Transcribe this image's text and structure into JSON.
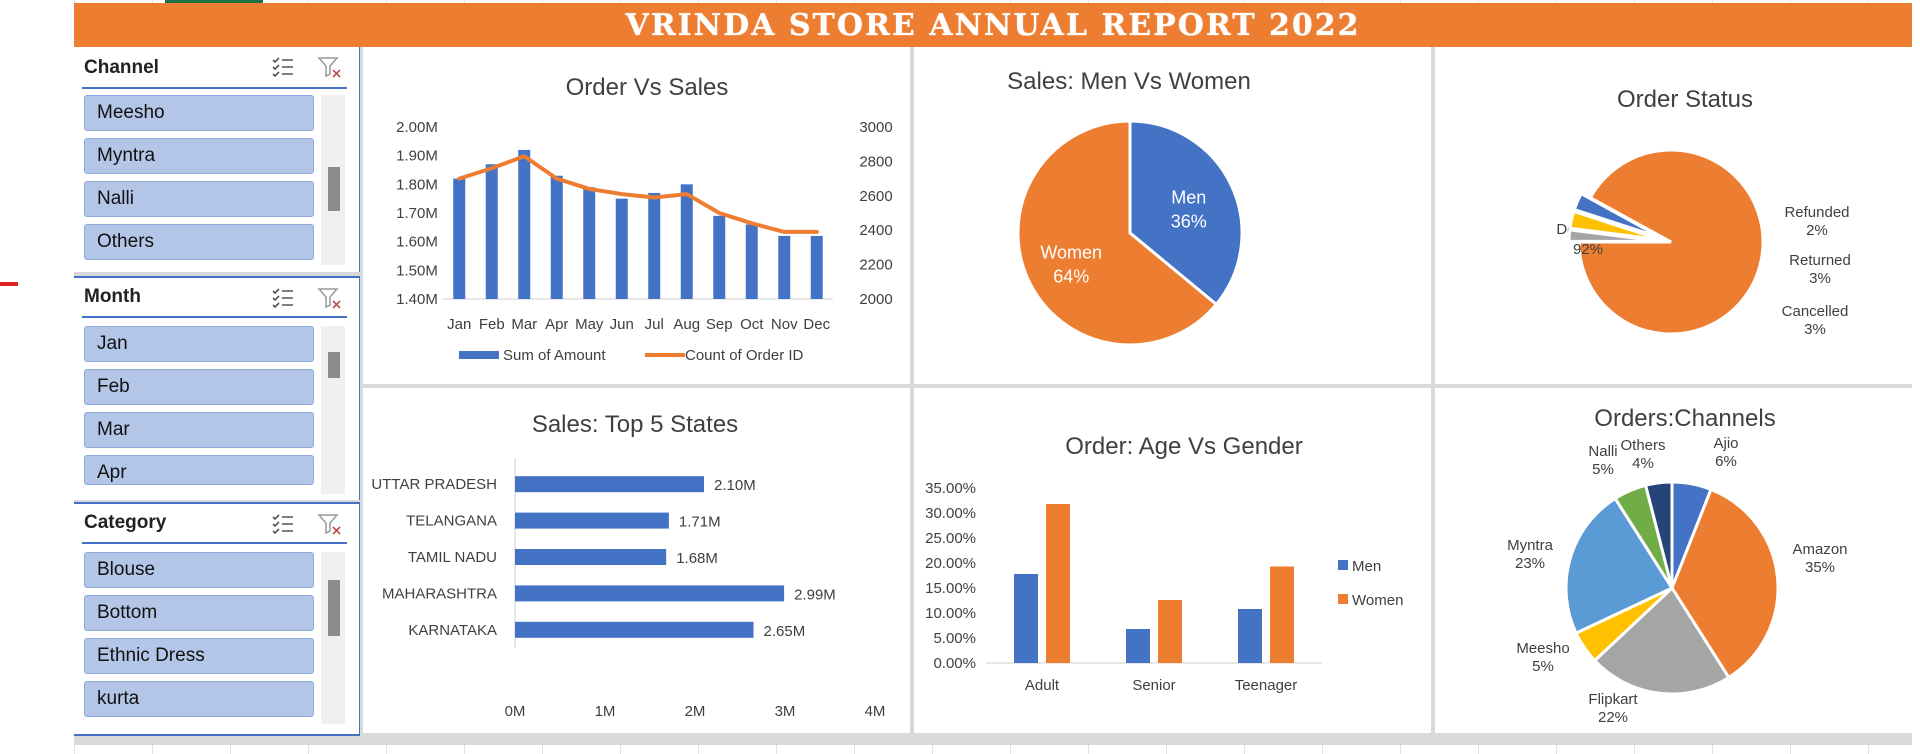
{
  "banner": {
    "title": "VRINDA STORE ANNUAL REPORT 2022"
  },
  "colors": {
    "orange": "#ed7d31",
    "blue": "#4472c4",
    "gray": "#a5a5a5",
    "yellow": "#ffc000",
    "lightblue": "#5b9bd5",
    "green": "#70ad47",
    "navy": "#264478"
  },
  "slicers": [
    {
      "title": "Channel",
      "items": [
        "Meesho",
        "Myntra",
        "Nalli",
        "Others"
      ]
    },
    {
      "title": "Month",
      "items": [
        "Jan",
        "Feb",
        "Mar",
        "Apr"
      ]
    },
    {
      "title": "Category",
      "items": [
        "Blouse",
        "Bottom",
        "Ethnic Dress",
        "kurta"
      ]
    }
  ],
  "chart_data": [
    {
      "id": "order-vs-sales",
      "type": "bar",
      "title": "Order Vs Sales",
      "categories": [
        "Jan",
        "Feb",
        "Mar",
        "Apr",
        "May",
        "Jun",
        "Jul",
        "Aug",
        "Sep",
        "Oct",
        "Nov",
        "Dec"
      ],
      "series": [
        {
          "name": "Sum of Amount",
          "type": "bar",
          "axis": "left",
          "values": [
            1.82,
            1.87,
            1.92,
            1.83,
            1.79,
            1.75,
            1.77,
            1.8,
            1.69,
            1.66,
            1.62,
            1.62
          ]
        },
        {
          "name": "Count of Order ID",
          "type": "line",
          "axis": "right",
          "values": [
            2700,
            2760,
            2830,
            2700,
            2640,
            2610,
            2590,
            2610,
            2500,
            2440,
            2390,
            2390
          ]
        }
      ],
      "ylim_left": [
        1.4,
        2.0
      ],
      "yticks_left": [
        "1.40M",
        "1.50M",
        "1.60M",
        "1.70M",
        "1.80M",
        "1.90M",
        "2.00M"
      ],
      "ylim_right": [
        2000,
        3000
      ],
      "yticks_right": [
        "2000",
        "2200",
        "2400",
        "2600",
        "2800",
        "3000"
      ],
      "legend": "bottom"
    },
    {
      "id": "sales-men-women",
      "type": "pie",
      "title": "Sales: Men Vs Women",
      "labels": [
        "Men",
        "Women"
      ],
      "values": [
        36,
        64
      ],
      "value_labels": [
        "36%",
        "64%"
      ]
    },
    {
      "id": "order-status",
      "type": "pie",
      "title": "Order Status",
      "labels": [
        "Delivered",
        "Refunded",
        "Returned",
        "Cancelled"
      ],
      "values": [
        92,
        2,
        3,
        3
      ],
      "value_labels": [
        "92%",
        "2%",
        "3%",
        "3%"
      ]
    },
    {
      "id": "top-5-states",
      "type": "bar",
      "orientation": "horizontal",
      "title": "Sales: Top 5 States",
      "categories": [
        "UTTAR PRADESH",
        "TELANGANA",
        "TAMIL NADU",
        "MAHARASHTRA",
        "KARNATAKA"
      ],
      "values": [
        2.1,
        1.71,
        1.68,
        2.99,
        2.65
      ],
      "value_labels": [
        "2.10M",
        "1.71M",
        "1.68M",
        "2.99M",
        "2.65M"
      ],
      "xlim": [
        0,
        4
      ],
      "xticks": [
        "0M",
        "1M",
        "2M",
        "3M",
        "4M"
      ]
    },
    {
      "id": "age-vs-gender",
      "type": "bar",
      "title": "Order: Age Vs Gender",
      "categories": [
        "Adult",
        "Senior",
        "Teenager"
      ],
      "series": [
        {
          "name": "Men",
          "values": [
            17.8,
            6.8,
            10.8
          ]
        },
        {
          "name": "Women",
          "values": [
            31.8,
            12.6,
            19.3
          ]
        }
      ],
      "ylim": [
        0,
        35
      ],
      "yticks": [
        "0.00%",
        "5.00%",
        "10.00%",
        "15.00%",
        "20.00%",
        "25.00%",
        "30.00%",
        "35.00%"
      ],
      "legend": "right"
    },
    {
      "id": "orders-channels",
      "type": "pie",
      "title": "Orders:Channels",
      "labels": [
        "Ajio",
        "Amazon",
        "Flipkart",
        "Meesho",
        "Myntra",
        "Nalli",
        "Others"
      ],
      "values": [
        6,
        35,
        22,
        5,
        23,
        5,
        4
      ],
      "value_labels": [
        "6%",
        "35%",
        "22%",
        "5%",
        "23%",
        "5%",
        "4%"
      ]
    }
  ]
}
